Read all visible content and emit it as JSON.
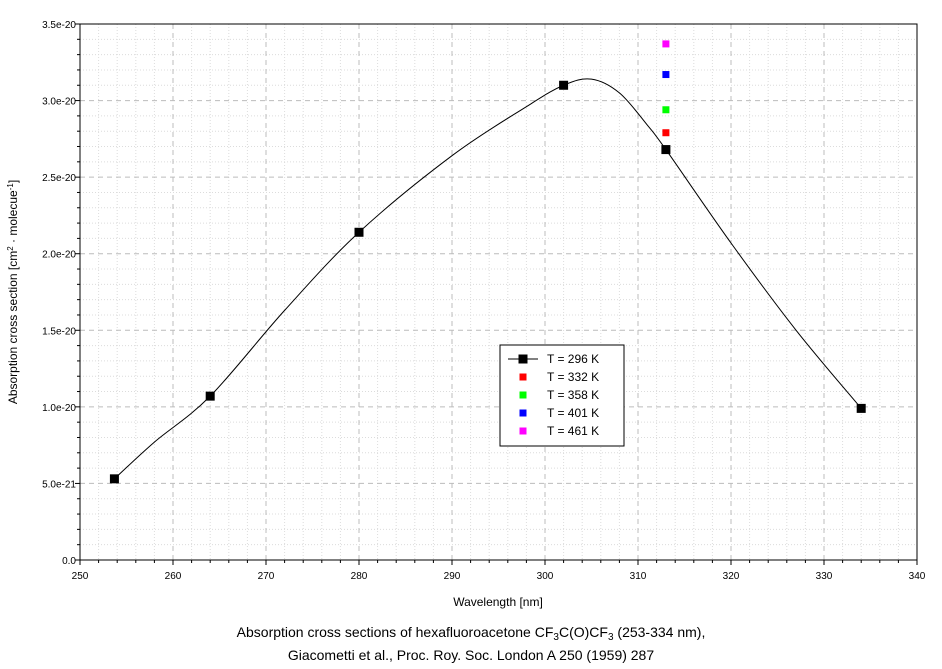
{
  "chart_data": {
    "type": "line",
    "xlabel": "Wavelength [nm]",
    "ylabel": {
      "prefix": "Absorption cross section [cm",
      "sup1": "2",
      "mid": " · molecue",
      "sup2": "-1",
      "suffix": "]"
    },
    "xlim": [
      250,
      340
    ],
    "ylim": [
      0,
      3.5e-20
    ],
    "x_ticks": [
      "250",
      "260",
      "270",
      "280",
      "290",
      "300",
      "310",
      "320",
      "330",
      "340"
    ],
    "y_ticks": [
      "0.0",
      "5.0e-21",
      "1.0e-20",
      "1.5e-20",
      "2.0e-20",
      "2.5e-20",
      "3.0e-20",
      "3.5e-20"
    ],
    "grid": true,
    "legend_placement": "center-bottom",
    "series": [
      {
        "name": "T = 296 K",
        "color": "#000000",
        "marker": "square",
        "line": true,
        "x": [
          253.7,
          264.0,
          280.0,
          302.0,
          313.0,
          334.0
        ],
        "y": [
          5.3e-21,
          1.07e-20,
          2.14e-20,
          3.1e-20,
          2.68e-20,
          9.9e-21
        ],
        "smooth_curve": {
          "x": [
            253.7,
            258,
            264,
            272,
            280,
            290,
            298,
            302,
            305,
            308,
            311,
            313,
            320,
            327,
            334
          ],
          "y": [
            5.3e-21,
            7.7e-21,
            1.07e-20,
            1.63e-20,
            2.14e-20,
            2.64e-20,
            2.96e-20,
            3.1e-20,
            3.14e-20,
            3.05e-20,
            2.84e-20,
            2.68e-20,
            2.07e-20,
            1.5e-20,
            9.9e-21
          ]
        }
      },
      {
        "name": "T = 332 K",
        "color": "#ff0000",
        "marker": "square",
        "line": false,
        "x": [
          313.0
        ],
        "y": [
          2.79e-20
        ]
      },
      {
        "name": "T = 358 K",
        "color": "#00ff00",
        "marker": "square",
        "line": false,
        "x": [
          313.0
        ],
        "y": [
          2.94e-20
        ]
      },
      {
        "name": "T = 401 K",
        "color": "#0000ff",
        "marker": "square",
        "line": false,
        "x": [
          313.0
        ],
        "y": [
          3.17e-20
        ]
      },
      {
        "name": "T = 461 K",
        "color": "#ff00ff",
        "marker": "square",
        "line": false,
        "x": [
          313.0
        ],
        "y": [
          3.37e-20
        ]
      }
    ]
  },
  "caption": {
    "line1": {
      "prefix": "Absorption cross sections of hexafluoroacetone CF",
      "sub1": "3",
      "mid": "C(O)CF",
      "sub2": "3",
      "suffix": " (253-334 nm),"
    },
    "line2": "Giacometti et al., Proc. Roy. Soc. London A 250 (1959) 287"
  }
}
